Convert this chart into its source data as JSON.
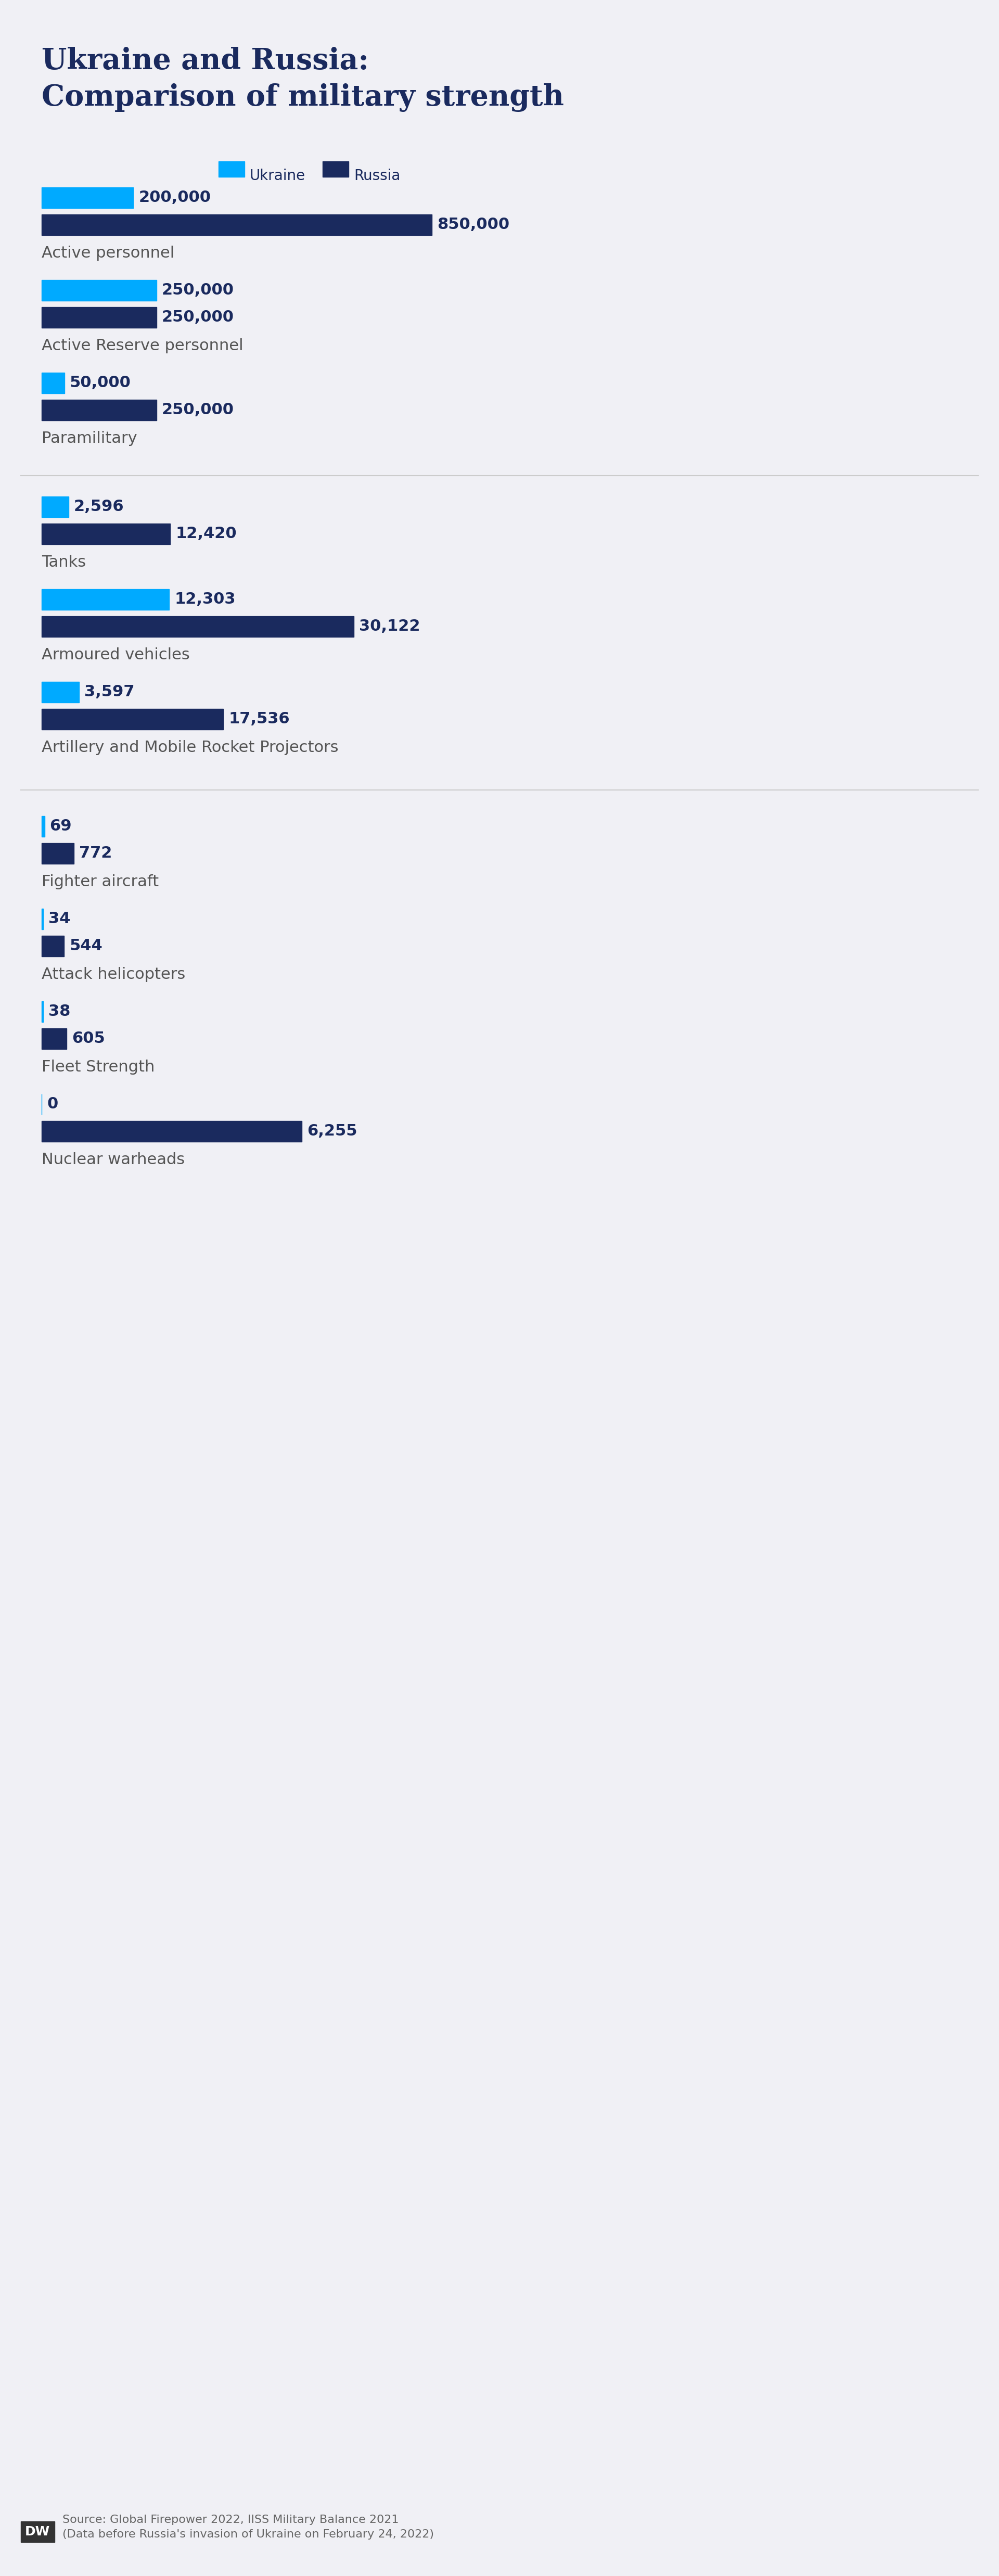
{
  "title_line1": "Ukraine and Russia:",
  "title_line2": "Comparison of military strength",
  "title_color": "#1a2a5e",
  "ukraine_color": "#00aaff",
  "russia_color": "#1a2a5e",
  "background_color": "#f0f0f5",
  "label_color": "#555555",
  "legend_ukraine": "Ukraine",
  "legend_russia": "Russia",
  "categories": [
    {
      "name": "Active personnel",
      "ukraine": 200000,
      "russia": 850000,
      "ukraine_label": "200,000",
      "russia_label": "850,000",
      "max_val": 850000
    },
    {
      "name": "Active Reserve personnel",
      "ukraine": 250000,
      "russia": 250000,
      "ukraine_label": "250,000",
      "russia_label": "250,000",
      "max_val": 850000
    },
    {
      "name": "Paramilitary",
      "ukraine": 50000,
      "russia": 250000,
      "ukraine_label": "50,000",
      "russia_label": "250,000",
      "max_val": 850000
    },
    {
      "name": "Tanks",
      "ukraine": 2596,
      "russia": 12420,
      "ukraine_label": "2,596",
      "russia_label": "12,420",
      "max_val": 30122
    },
    {
      "name": "Armoured vehicles",
      "ukraine": 12303,
      "russia": 30122,
      "ukraine_label": "12,303",
      "russia_label": "30,122",
      "max_val": 30122
    },
    {
      "name": "Artillery and Mobile Rocket Projectors",
      "ukraine": 3597,
      "russia": 17536,
      "ukraine_label": "3,597",
      "russia_label": "17,536",
      "max_val": 30122
    },
    {
      "name": "Fighter aircraft",
      "ukraine": 69,
      "russia": 772,
      "ukraine_label": "69",
      "russia_label": "772",
      "max_val": 6255
    },
    {
      "name": "Attack helicopters",
      "ukraine": 34,
      "russia": 544,
      "ukraine_label": "34",
      "russia_label": "544",
      "max_val": 6255
    },
    {
      "name": "Fleet Strength",
      "ukraine": 38,
      "russia": 605,
      "ukraine_label": "38",
      "russia_label": "605",
      "max_val": 6255
    },
    {
      "name": "Nuclear warheads",
      "ukraine": 0,
      "russia": 6255,
      "ukraine_label": "0",
      "russia_label": "6,255",
      "max_val": 6255
    }
  ],
  "source_text": "Source: Global Firepower 2022, IISS Military Balance 2021\n(Data before Russia's invasion of Ukraine on February 24, 2022)",
  "dw_logo_color": "#ffffff",
  "dw_logo_bg": "#333333",
  "bar_height": 0.35,
  "font_size_title": 36,
  "font_size_labels": 22,
  "font_size_category": 22,
  "font_size_values": 22,
  "font_size_legend": 20,
  "font_size_source": 16
}
